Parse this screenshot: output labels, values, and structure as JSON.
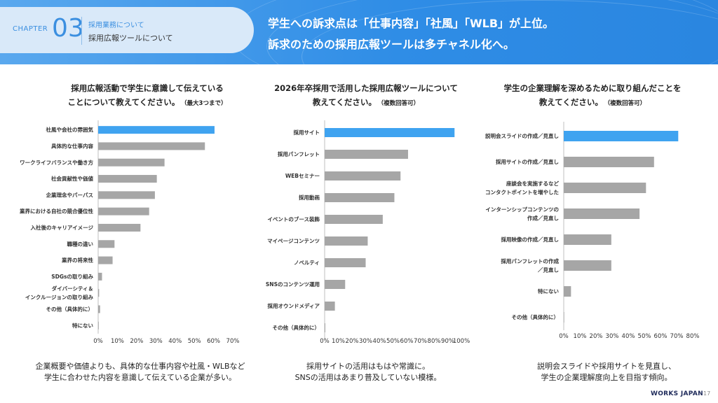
{
  "header": {
    "chapter_label": "CHAPTER",
    "chapter_number": "03",
    "chapter_sub1": "採用業務について",
    "chapter_sub2": "採用広報ツールについて",
    "headline_line1": "学生への訴求点は「仕事内容」「社風」「WLB」が上位。",
    "headline_line2": "訴求のための採用広報ツールは多チャネル化へ。"
  },
  "panels": [
    {
      "title_line1": "採用広報活動で学生に意識して伝えている",
      "title_line2": "ことについて教えてください。",
      "title_note": "（最大3つまで）",
      "caption_line1": "企業概要や価値よりも、具体的な仕事内容や社風・WLBなど",
      "caption_line2": "学生に合わせた内容を意識して伝えている企業が多い。"
    },
    {
      "title_line1": "2026年卒採用で活用した採用広報ツールについて",
      "title_line2": "教えてください。",
      "title_note": "（複数回答可）",
      "caption_line1": "採用サイトの活用はもはや常識に。",
      "caption_line2": "SNSの活用はあまり普及していない模様。"
    },
    {
      "title_line1": "学生の企業理解を深めるために取り組んだことを",
      "title_line2": "教えてください。",
      "title_note": "（複数回答可）",
      "caption_line1": "説明会スライドや採用サイトを見直し、",
      "caption_line2": "学生の企業理解度向上を目指す傾向。"
    }
  ],
  "chart_data": [
    {
      "type": "bar",
      "orientation": "horizontal",
      "categories": [
        "社風や会社の雰囲気",
        "具体的な仕事内容",
        "ワークライフバランスや働き方",
        "社会貢献性や価値",
        "企業理念やパーパス",
        "業界における自社の競合優位性",
        "入社後のキャリアイメージ",
        "職種の違い",
        "業界の将来性",
        "SDGsの取り組み",
        "ダイバーシティ＆\nインクルージョンの取り組み",
        "その他（具体的に）",
        "特にない"
      ],
      "values": [
        60.5,
        55.5,
        34.5,
        30.5,
        29.5,
        26.5,
        22,
        8.5,
        7.5,
        2,
        0.5,
        1,
        0.3
      ],
      "highlight_index": 0,
      "xlim": [
        0,
        70
      ],
      "ticks": [
        "0%",
        "10%",
        "20%",
        "30%",
        "40%",
        "50%",
        "60%",
        "70%"
      ],
      "colors": {
        "highlight": "#3fa3f0",
        "default": "#a6a6a6"
      }
    },
    {
      "type": "bar",
      "orientation": "horizontal",
      "categories": [
        "採用サイト",
        "採用パンフレット",
        "WEBセミナー",
        "採用動画",
        "イベントのブース装飾",
        "マイページコンテンツ",
        "ノベルティ",
        "SNSのコンテンツ運用",
        "採用オウンドメディア",
        "その他（具体的に）"
      ],
      "values": [
        95,
        61,
        55.5,
        51,
        42.5,
        31.5,
        30,
        15,
        7.5,
        0.5
      ],
      "highlight_index": 0,
      "xlim": [
        0,
        100
      ],
      "ticks": [
        "0%",
        "10%",
        "20%",
        "30%",
        "40%",
        "50%",
        "60%",
        "70%",
        "80%",
        "90%",
        "100%"
      ],
      "colors": {
        "highlight": "#3fa3f0",
        "default": "#a6a6a6"
      }
    },
    {
      "type": "bar",
      "orientation": "horizontal",
      "categories": [
        "説明会スライドの作成／見直し",
        "採用サイトの作成／見直し",
        "座談会を実施するなど\nコンタクトポイントを増やした",
        "インターンシップコンテンツの\n作成／見直し",
        "採用映像の作成／見直し",
        "採用パンフレットの作成\n／見直し",
        "特にない",
        "その他（具体的に）"
      ],
      "values": [
        71,
        56,
        51,
        47,
        29.5,
        29.5,
        4.5,
        0.3
      ],
      "highlight_index": 0,
      "xlim": [
        0,
        80
      ],
      "ticks": [
        "0%",
        "10%",
        "20%",
        "30%",
        "40%",
        "50%",
        "60%",
        "70%",
        "80%"
      ],
      "colors": {
        "highlight": "#3fa3f0",
        "default": "#a6a6a6"
      }
    }
  ],
  "footer": {
    "brand": "WORKS JAPAN",
    "page_number": "17"
  }
}
